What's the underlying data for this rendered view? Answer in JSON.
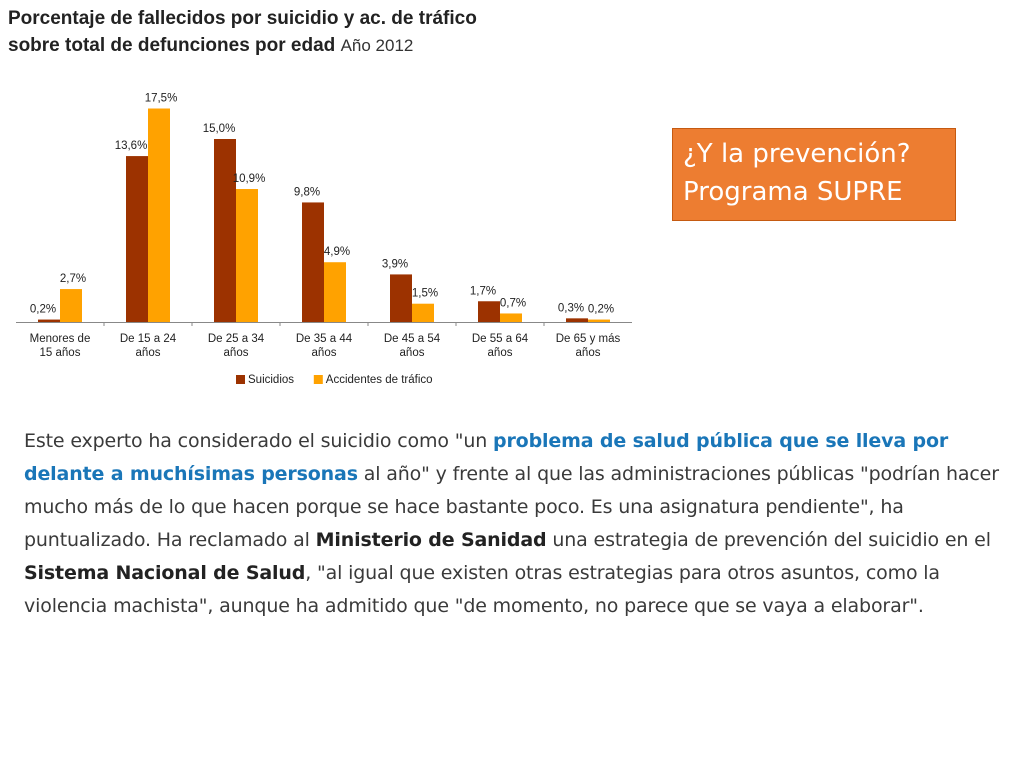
{
  "slide": {
    "title_line1": "Porcentaje de fallecidos por suicidio y ac. de tráfico",
    "title_line2": "sobre total de defunciones por edad",
    "title_year": "Año 2012"
  },
  "callout": {
    "line1": "¿Y la prevención?",
    "line2": "Programa SUPRE",
    "color": "#ed7d31"
  },
  "chart_data": {
    "type": "bar",
    "title": "Porcentaje de fallecidos por suicidio y ac. de tráfico sobre total de defunciones por edad",
    "subtitle": "Año 2012",
    "xlabel": "",
    "ylabel": "",
    "ylim": [
      0,
      18
    ],
    "grid": false,
    "legend_position": "bottom",
    "categories": [
      [
        "Menores de",
        "15 años"
      ],
      [
        "De 15 a 24",
        "años"
      ],
      [
        "De 25 a 34",
        "años"
      ],
      [
        "De 35 a 44",
        "años"
      ],
      [
        "De 45 a 54",
        "años"
      ],
      [
        "De 55 a 64",
        "años"
      ],
      [
        "De 65 y más",
        "años"
      ]
    ],
    "series": [
      {
        "name": "Suicidios",
        "color": "#9c3200",
        "values": [
          0.2,
          13.6,
          15.0,
          9.8,
          3.9,
          1.7,
          0.3
        ],
        "labels": [
          "0,2%",
          "13,6%",
          "15,0%",
          "9,8%",
          "3,9%",
          "1,7%",
          "0,3%"
        ]
      },
      {
        "name": "Accidentes de tráfico",
        "color": "#ffa200",
        "values": [
          2.7,
          17.5,
          10.9,
          4.9,
          1.5,
          0.7,
          0.2
        ],
        "labels": [
          "2,7%",
          "17,5%",
          "10,9%",
          "4,9%",
          "1,5%",
          "0,7%",
          "0,2%"
        ]
      }
    ]
  },
  "quote": {
    "p1": "Este experto ha considerado el suicidio como \"un ",
    "hl": "problema de salud pública que se lleva por delante a muchísimas personas",
    "p2": " al año\" y frente al que las administraciones públicas \"podrían hacer mucho más de lo que hacen porque se hace bastante poco. Es una asignatura pendiente\", ha puntualizado. Ha reclamado al ",
    "b1": "Ministerio de Sanidad",
    "p3": " una estrategia de prevención del suicidio en el ",
    "b2": "Sistema Nacional de Salud",
    "p4": ", \"al igual que existen otras estrategias para otros asuntos, como la violencia machista\", aunque ha admitido que \"de momento, no parece que se vaya a elaborar\"."
  }
}
